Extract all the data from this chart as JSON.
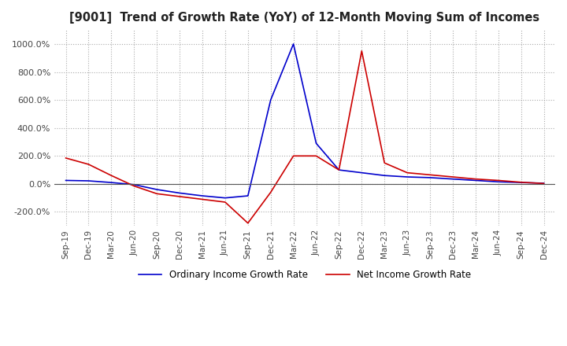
{
  "title": "[9001]  Trend of Growth Rate (YoY) of 12-Month Moving Sum of Incomes",
  "background_color": "#ffffff",
  "grid_color": "#aaaaaa",
  "ylim": [
    -300,
    1100
  ],
  "yticks": [
    -200,
    0,
    200,
    400,
    600,
    800,
    1000
  ],
  "x_labels": [
    "Sep-19",
    "Dec-19",
    "Mar-20",
    "Jun-20",
    "Sep-20",
    "Dec-20",
    "Mar-21",
    "Jun-21",
    "Sep-21",
    "Dec-21",
    "Mar-22",
    "Jun-22",
    "Sep-22",
    "Dec-22",
    "Mar-23",
    "Jun-23",
    "Sep-23",
    "Dec-23",
    "Mar-24",
    "Jun-24",
    "Sep-24",
    "Dec-24"
  ],
  "ordinary_income": [
    25,
    22,
    10,
    -5,
    -40,
    -65,
    -85,
    -100,
    -85,
    600,
    1000,
    290,
    100,
    80,
    60,
    50,
    45,
    35,
    25,
    15,
    10,
    5
  ],
  "net_income": [
    185,
    140,
    60,
    -15,
    -70,
    -90,
    -110,
    -130,
    -280,
    -60,
    200,
    200,
    100,
    950,
    150,
    80,
    65,
    50,
    35,
    25,
    12,
    3
  ],
  "ordinary_color": "#0000cc",
  "net_color": "#cc0000",
  "legend_ordinary": "Ordinary Income Growth Rate",
  "legend_net": "Net Income Growth Rate",
  "line_width": 1.2
}
